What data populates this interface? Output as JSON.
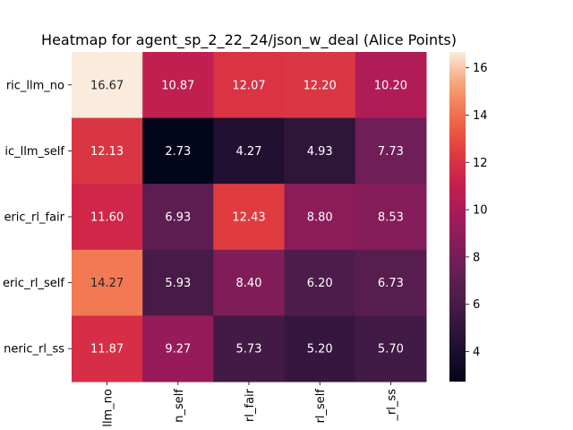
{
  "chart_data": {
    "type": "heatmap",
    "title": "Heatmap for agent_sp_2_22_24/json_w_deal (Alice Points)",
    "xlabel": "",
    "ylabel": "",
    "row_labels": [
      "ric_llm_no",
      "ic_llm_self",
      "eric_rl_fair",
      "eric_rl_self",
      "neric_rl_ss"
    ],
    "col_labels": [
      "llm_no",
      "n_self",
      "rl_fair",
      "rl_self",
      "_rl_ss"
    ],
    "values": [
      [
        16.67,
        10.87,
        12.07,
        12.2,
        10.2
      ],
      [
        12.13,
        2.73,
        4.27,
        4.93,
        7.73
      ],
      [
        11.6,
        6.93,
        12.43,
        8.8,
        8.53
      ],
      [
        14.27,
        5.93,
        8.4,
        6.2,
        6.73
      ],
      [
        11.87,
        9.27,
        5.73,
        5.2,
        5.7
      ]
    ],
    "value_labels": [
      [
        "16.67",
        "10.87",
        "12.07",
        "12.20",
        "10.20"
      ],
      [
        "12.13",
        "2.73",
        "4.27",
        "4.93",
        "7.73"
      ],
      [
        "11.60",
        "6.93",
        "12.43",
        "8.80",
        "8.53"
      ],
      [
        "14.27",
        "5.93",
        "8.40",
        "6.20",
        "6.73"
      ],
      [
        "11.87",
        "9.27",
        "5.73",
        "5.20",
        "5.70"
      ]
    ],
    "colorbar": {
      "min": 2.73,
      "max": 16.67,
      "ticks": [
        4,
        6,
        8,
        10,
        12,
        14,
        16
      ],
      "tick_labels": [
        "4",
        "6",
        "8",
        "10",
        "12",
        "14",
        "16"
      ],
      "colormap": "rocket"
    }
  }
}
